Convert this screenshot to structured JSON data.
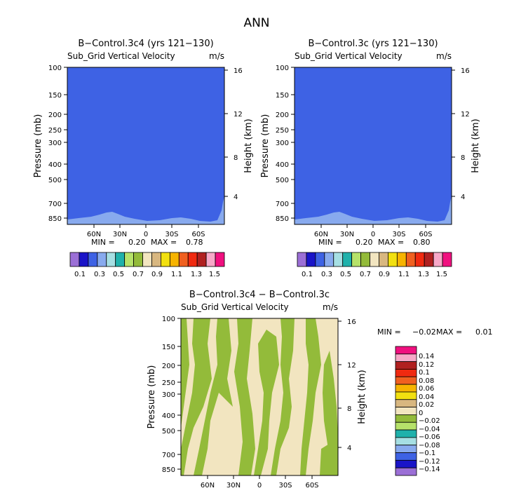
{
  "figure": {
    "title": "ANN"
  },
  "chart_data": [
    {
      "type": "heatmap",
      "title": "B−Control.3c4 (yrs 121−130)",
      "subtitle": "Sub_Grid Vertical Velocity",
      "units": "m/s",
      "ylabel": "Pressure (mb)",
      "ylabel_right": "Height (km)",
      "x_ticks": [
        "60N",
        "30N",
        "0",
        "30S",
        "60S"
      ],
      "y_ticks": [
        "100",
        "150",
        "200",
        "250",
        "300",
        "400",
        "500",
        "700",
        "850"
      ],
      "y_right_ticks": [
        "4",
        "8",
        "12",
        "16"
      ],
      "min_label": "MIN =",
      "min_value": "0.20",
      "max_label": "MAX =",
      "max_value": "0.78",
      "colorbar_labels": [
        "0.1",
        "0.3",
        "0.5",
        "0.7",
        "0.9",
        "1.1",
        "1.3",
        "1.5"
      ]
    },
    {
      "type": "heatmap",
      "title": "B−Control.3c (yrs 121−130)",
      "subtitle": "Sub_Grid Vertical Velocity",
      "units": "m/s",
      "ylabel": "Pressure (mb)",
      "ylabel_right": "Height (km)",
      "x_ticks": [
        "60N",
        "30N",
        "0",
        "30S",
        "60S"
      ],
      "y_ticks": [
        "100",
        "150",
        "200",
        "250",
        "300",
        "400",
        "500",
        "700",
        "850"
      ],
      "y_right_ticks": [
        "4",
        "8",
        "12",
        "16"
      ],
      "min_label": "MIN =",
      "min_value": "0.20",
      "max_label": "MAX =",
      "max_value": "0.80",
      "colorbar_labels": [
        "0.1",
        "0.3",
        "0.5",
        "0.7",
        "0.9",
        "1.1",
        "1.3",
        "1.5"
      ]
    },
    {
      "type": "heatmap",
      "title": "B−Control.3c4 − B−Control.3c",
      "subtitle": "Sub_Grid Vertical Velocity",
      "units": "m/s",
      "ylabel": "Pressure (mb)",
      "ylabel_right": "Height (km)",
      "x_ticks": [
        "60N",
        "30N",
        "0",
        "30S",
        "60S"
      ],
      "y_ticks": [
        "100",
        "150",
        "200",
        "250",
        "300",
        "400",
        "500",
        "700",
        "850"
      ],
      "y_right_ticks": [
        "4",
        "8",
        "12",
        "16"
      ],
      "min_label": "MIN =",
      "min_value": "−0.02",
      "max_label": "MAX =",
      "max_value": "0.01",
      "colorbar_labels": [
        "0.14",
        "0.12",
        "0.1",
        "0.08",
        "0.06",
        "0.04",
        "0.02",
        "0",
        "−0.02",
        "−0.04",
        "−0.06",
        "−0.08",
        "−0.1",
        "−0.12",
        "−0.14"
      ]
    }
  ],
  "colors": {
    "field_blue": "#3e62e4",
    "field_lightblue": "#88aaee",
    "diff_green": "#93bb3a",
    "diff_tan": "#f2e5c0",
    "palette_top": [
      "#9b6fd6",
      "#1a14c8",
      "#3e62e4",
      "#88aaee",
      "#a6dfe3",
      "#1fb1ab",
      "#b6e26a",
      "#93bb3a",
      "#f2e5c0",
      "#d8b780",
      "#f2e010",
      "#f7b400",
      "#f06020",
      "#f02a10",
      "#b02020",
      "#f7a8c8",
      "#f0107f"
    ],
    "palette_diff": [
      "#f0107f",
      "#f7a8c8",
      "#b02020",
      "#f02a10",
      "#f06020",
      "#f7b400",
      "#f2e010",
      "#d8b780",
      "#f2e5c0",
      "#93bb3a",
      "#b6e26a",
      "#1fb1ab",
      "#a6dfe3",
      "#88aaee",
      "#3e62e4",
      "#1a14c8",
      "#9b6fd6"
    ]
  }
}
